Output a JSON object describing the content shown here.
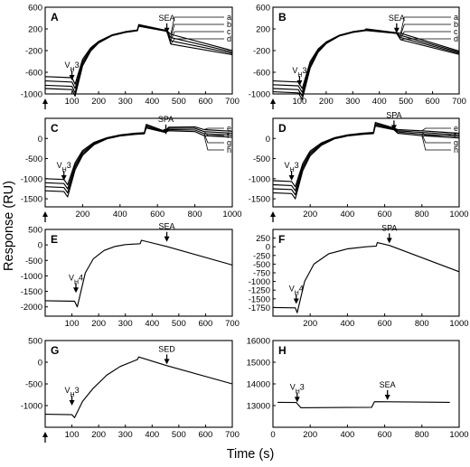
{
  "figure": {
    "ylabel": "Response (RU)",
    "xlabel": "Time (s)"
  },
  "chart_data": [
    {
      "panel": "A",
      "type": "line",
      "xlim": [
        0,
        700
      ],
      "ylim": [
        -1000,
        600
      ],
      "xticks": [
        100,
        200,
        300,
        400,
        500,
        600,
        700
      ],
      "yticks": [
        -1000,
        -600,
        -200,
        200,
        600
      ],
      "yticklabels": [
        "-1000",
        "-600",
        "-200",
        "200",
        "600"
      ],
      "x_tick_labels_shown": true,
      "start_arrow": true,
      "annotations": [
        {
          "text": "V",
          "sub": "H",
          "after": "3",
          "x": 100,
          "arrow_y": -750
        },
        {
          "text": "SEA",
          "x": 455,
          "arrow_y": 120
        }
      ],
      "series_labels": [
        "a",
        "b",
        "c",
        "d"
      ],
      "series": [
        {
          "name": "a",
          "x": [
            0,
            100,
            112,
            140,
            170,
            200,
            250,
            300,
            345,
            350,
            455,
            470,
            700
          ],
          "y": [
            -680,
            -700,
            -820,
            -360,
            -150,
            -30,
            90,
            150,
            180,
            280,
            170,
            100,
            -200
          ]
        },
        {
          "name": "b",
          "x": [
            0,
            100,
            112,
            140,
            170,
            200,
            250,
            300,
            345,
            350,
            455,
            470,
            700
          ],
          "y": [
            -760,
            -780,
            -900,
            -400,
            -170,
            -40,
            85,
            145,
            175,
            270,
            165,
            40,
            -225
          ]
        },
        {
          "name": "c",
          "x": [
            0,
            100,
            112,
            140,
            170,
            200,
            250,
            300,
            345,
            350,
            455,
            470,
            700
          ],
          "y": [
            -840,
            -860,
            -980,
            -440,
            -190,
            -50,
            80,
            140,
            170,
            260,
            160,
            -20,
            -250
          ]
        },
        {
          "name": "d",
          "x": [
            0,
            100,
            112,
            140,
            170,
            200,
            250,
            300,
            345,
            350,
            455,
            470,
            700
          ],
          "y": [
            -900,
            -920,
            -1040,
            -480,
            -210,
            -60,
            75,
            135,
            165,
            250,
            155,
            -80,
            -275
          ]
        }
      ]
    },
    {
      "panel": "B",
      "type": "line",
      "xlim": [
        0,
        700
      ],
      "ylim": [
        -1000,
        600
      ],
      "xticks": [
        100,
        200,
        300,
        400,
        500,
        600,
        700
      ],
      "yticks": [
        -1000,
        -600,
        -200,
        200,
        600
      ],
      "yticklabels": [
        "-1000",
        "-600",
        "-200",
        "200",
        "600"
      ],
      "x_tick_labels_shown": true,
      "start_arrow": true,
      "annotations": [
        {
          "text": "V",
          "sub": "H",
          "after": "3",
          "x": 100,
          "arrow_y": -850
        },
        {
          "text": "SEA",
          "x": 465,
          "arrow_y": 120
        }
      ],
      "series_labels": [
        "a",
        "b",
        "c",
        "d"
      ],
      "series": [
        {
          "name": "a",
          "x": [
            0,
            95,
            110,
            140,
            170,
            200,
            250,
            300,
            345,
            350,
            465,
            480,
            700
          ],
          "y": [
            -760,
            -780,
            -900,
            -400,
            -170,
            -40,
            85,
            150,
            180,
            200,
            130,
            120,
            -210
          ]
        },
        {
          "name": "b",
          "x": [
            0,
            95,
            110,
            140,
            170,
            200,
            250,
            300,
            345,
            350,
            465,
            480,
            700
          ],
          "y": [
            -830,
            -850,
            -970,
            -440,
            -190,
            -50,
            80,
            145,
            175,
            190,
            125,
            80,
            -230
          ]
        },
        {
          "name": "c",
          "x": [
            0,
            95,
            110,
            140,
            170,
            200,
            250,
            300,
            345,
            350,
            465,
            480,
            700
          ],
          "y": [
            -900,
            -920,
            -1040,
            -480,
            -210,
            -60,
            75,
            140,
            170,
            180,
            120,
            40,
            -250
          ]
        },
        {
          "name": "d",
          "x": [
            0,
            95,
            110,
            140,
            170,
            200,
            250,
            300,
            345,
            350,
            465,
            480,
            700
          ],
          "y": [
            -960,
            -980,
            -1100,
            -520,
            -230,
            -70,
            70,
            135,
            165,
            170,
            115,
            0,
            -270
          ]
        }
      ]
    },
    {
      "panel": "C",
      "type": "line",
      "xlim": [
        0,
        1000
      ],
      "ylim": [
        -1700,
        500
      ],
      "xticks": [
        200,
        400,
        600,
        800,
        1000
      ],
      "yticks": [
        -1500,
        -1000,
        -500,
        0
      ],
      "yticklabels": [
        "-1500",
        "-1000",
        "-500",
        "0"
      ],
      "x_tick_labels_shown": true,
      "start_arrow": true,
      "annotations": [
        {
          "text": "V",
          "sub": "H",
          "after": "3",
          "x": 100,
          "arrow_y": -1050
        },
        {
          "text": "SPA",
          "x": 645,
          "arrow_y": 100
        }
      ],
      "series_labels": [
        "e",
        "f",
        "g",
        "h"
      ],
      "series": [
        {
          "name": "e",
          "x": [
            0,
            100,
            120,
            160,
            200,
            260,
            330,
            400,
            480,
            530,
            540,
            640,
            660,
            800,
            850,
            1000
          ],
          "y": [
            -1000,
            -1020,
            -1150,
            -600,
            -300,
            -100,
            20,
            90,
            130,
            145,
            350,
            180,
            280,
            290,
            220,
            180
          ]
        },
        {
          "name": "f",
          "x": [
            0,
            100,
            120,
            160,
            200,
            260,
            330,
            400,
            480,
            530,
            540,
            640,
            660,
            800,
            850,
            1000
          ],
          "y": [
            -1100,
            -1120,
            -1250,
            -660,
            -340,
            -120,
            10,
            80,
            120,
            135,
            320,
            170,
            250,
            250,
            170,
            130
          ]
        },
        {
          "name": "g",
          "x": [
            0,
            100,
            120,
            160,
            200,
            260,
            330,
            400,
            480,
            530,
            540,
            640,
            660,
            800,
            850,
            1000
          ],
          "y": [
            -1200,
            -1220,
            -1350,
            -720,
            -380,
            -140,
            0,
            70,
            110,
            125,
            290,
            160,
            220,
            210,
            120,
            80
          ]
        },
        {
          "name": "h",
          "x": [
            0,
            100,
            120,
            160,
            200,
            260,
            330,
            400,
            480,
            530,
            540,
            640,
            660,
            800,
            850,
            1000
          ],
          "y": [
            -1300,
            -1320,
            -1450,
            -780,
            -420,
            -160,
            -10,
            60,
            100,
            115,
            260,
            150,
            190,
            170,
            70,
            30
          ]
        }
      ]
    },
    {
      "panel": "D",
      "type": "line",
      "xlim": [
        0,
        1000
      ],
      "ylim": [
        -1700,
        500
      ],
      "xticks": [
        200,
        400,
        600,
        800,
        1000
      ],
      "yticks": [
        -1500,
        -1000,
        -500,
        0
      ],
      "yticklabels": [
        "-1500",
        "-1000",
        "-500",
        "0"
      ],
      "x_tick_labels_shown": true,
      "start_arrow": true,
      "annotations": [
        {
          "text": "V",
          "sub": "H",
          "after": "3",
          "x": 100,
          "arrow_y": -1050
        },
        {
          "text": "SPA",
          "x": 650,
          "arrow_y": 200
        }
      ],
      "series_labels": [
        "e",
        "f",
        "g",
        "h"
      ],
      "series": [
        {
          "name": "e",
          "x": [
            0,
            100,
            120,
            160,
            200,
            260,
            330,
            400,
            480,
            540,
            550,
            650,
            670,
            800,
            1000
          ],
          "y": [
            -1050,
            -1070,
            -1200,
            -620,
            -310,
            -110,
            20,
            90,
            130,
            150,
            400,
            260,
            220,
            190,
            130
          ]
        },
        {
          "name": "f",
          "x": [
            0,
            100,
            120,
            160,
            200,
            260,
            330,
            400,
            480,
            540,
            550,
            650,
            670,
            800,
            1000
          ],
          "y": [
            -1150,
            -1170,
            -1300,
            -680,
            -350,
            -130,
            10,
            80,
            120,
            140,
            370,
            245,
            190,
            150,
            90
          ]
        },
        {
          "name": "g",
          "x": [
            0,
            100,
            120,
            160,
            200,
            260,
            330,
            400,
            480,
            540,
            550,
            650,
            670,
            800,
            1000
          ],
          "y": [
            -1250,
            -1270,
            -1400,
            -740,
            -390,
            -150,
            0,
            70,
            110,
            130,
            340,
            230,
            160,
            110,
            50
          ]
        },
        {
          "name": "h",
          "x": [
            0,
            100,
            120,
            160,
            200,
            260,
            330,
            400,
            480,
            540,
            550,
            650,
            670,
            800,
            1000
          ],
          "y": [
            -1350,
            -1370,
            -1500,
            -800,
            -430,
            -170,
            -10,
            60,
            100,
            120,
            310,
            215,
            130,
            70,
            10
          ]
        }
      ]
    },
    {
      "panel": "E",
      "type": "line",
      "xlim": [
        0,
        700
      ],
      "ylim": [
        -2300,
        500
      ],
      "xticks": [
        100,
        200,
        300,
        400,
        500,
        600,
        700
      ],
      "yticks": [
        -2000,
        -1500,
        -1000,
        -500,
        0,
        500
      ],
      "yticklabels": [
        "-2000",
        "-1500",
        "-1000",
        "-500",
        "0",
        "500"
      ],
      "x_tick_labels_shown": true,
      "start_arrow": false,
      "annotations": [
        {
          "text": "V",
          "sub": "H",
          "after": "4",
          "x": 115,
          "arrow_y": -1550
        },
        {
          "text": "SEA",
          "x": 455,
          "arrow_y": 100
        }
      ],
      "series_labels": [],
      "series": [
        {
          "name": "",
          "x": [
            0,
            110,
            120,
            150,
            180,
            220,
            260,
            300,
            355,
            360,
            455,
            700
          ],
          "y": [
            -1800,
            -1820,
            -2000,
            -900,
            -450,
            -180,
            -50,
            10,
            40,
            150,
            -50,
            -650
          ]
        }
      ]
    },
    {
      "panel": "F",
      "type": "line",
      "xlim": [
        0,
        1000
      ],
      "ylim": [
        -2000,
        500
      ],
      "xticks": [
        200,
        400,
        600,
        800,
        1000
      ],
      "yticks": [
        -1750,
        -1500,
        -1250,
        -1000,
        -750,
        -500,
        -250,
        0,
        250
      ],
      "yticklabels": [
        "-1750",
        "-1500",
        "-1250",
        "-1000",
        "-750",
        "-500",
        "-250",
        "0",
        "250"
      ],
      "x_tick_labels_shown": true,
      "start_arrow": false,
      "annotations": [
        {
          "text": "V",
          "sub": "H",
          "after": "4",
          "x": 125,
          "arrow_y": -1650
        },
        {
          "text": "SPA",
          "x": 625,
          "arrow_y": 100
        }
      ],
      "series_labels": [],
      "series": [
        {
          "name": "",
          "x": [
            0,
            120,
            130,
            170,
            220,
            300,
            400,
            500,
            555,
            560,
            625,
            1000
          ],
          "y": [
            -1750,
            -1760,
            -1900,
            -1000,
            -500,
            -200,
            -60,
            0,
            20,
            120,
            40,
            -720
          ]
        }
      ]
    },
    {
      "panel": "G",
      "type": "line",
      "xlim": [
        0,
        700
      ],
      "ylim": [
        -1500,
        500
      ],
      "xticks": [
        100,
        200,
        300,
        400,
        500,
        600,
        700
      ],
      "yticks": [
        -1000,
        -500,
        0,
        500
      ],
      "yticklabels": [
        "-1000",
        "-500",
        "0",
        "500"
      ],
      "x_tick_labels_shown": true,
      "start_arrow": true,
      "annotations": [
        {
          "text": "V",
          "sub": "H",
          "after": "3",
          "x": 100,
          "arrow_y": -1000
        },
        {
          "text": "SED",
          "x": 455,
          "arrow_y": -50
        }
      ],
      "series_labels": [],
      "series": [
        {
          "name": "",
          "x": [
            0,
            100,
            110,
            140,
            180,
            230,
            280,
            340,
            345,
            350,
            455,
            700
          ],
          "y": [
            -1200,
            -1210,
            -1280,
            -900,
            -600,
            -300,
            -100,
            50,
            60,
            120,
            -80,
            -500
          ]
        }
      ]
    },
    {
      "panel": "H",
      "type": "line",
      "xlim": [
        0,
        1000
      ],
      "ylim": [
        12000,
        16000
      ],
      "xticks": [
        0,
        200,
        400,
        600,
        800,
        1000
      ],
      "yticks": [
        12000,
        13000,
        14000,
        15000,
        16000
      ],
      "yticklabels": [
        "",
        "13000",
        "14000",
        "15000",
        "16000"
      ],
      "x_tick_labels_shown": true,
      "start_arrow": false,
      "annotations": [
        {
          "text": "V",
          "sub": "H",
          "after": "3",
          "x": 130,
          "arrow_y": 13150
        },
        {
          "text": "SEA",
          "x": 615,
          "arrow_y": 13250
        }
      ],
      "series_labels": [],
      "series": [
        {
          "name": "",
          "x": [
            25,
            125,
            150,
            530,
            545,
            700,
            950
          ],
          "y": [
            13150,
            13140,
            12900,
            12920,
            13180,
            13170,
            13150
          ]
        }
      ]
    }
  ]
}
